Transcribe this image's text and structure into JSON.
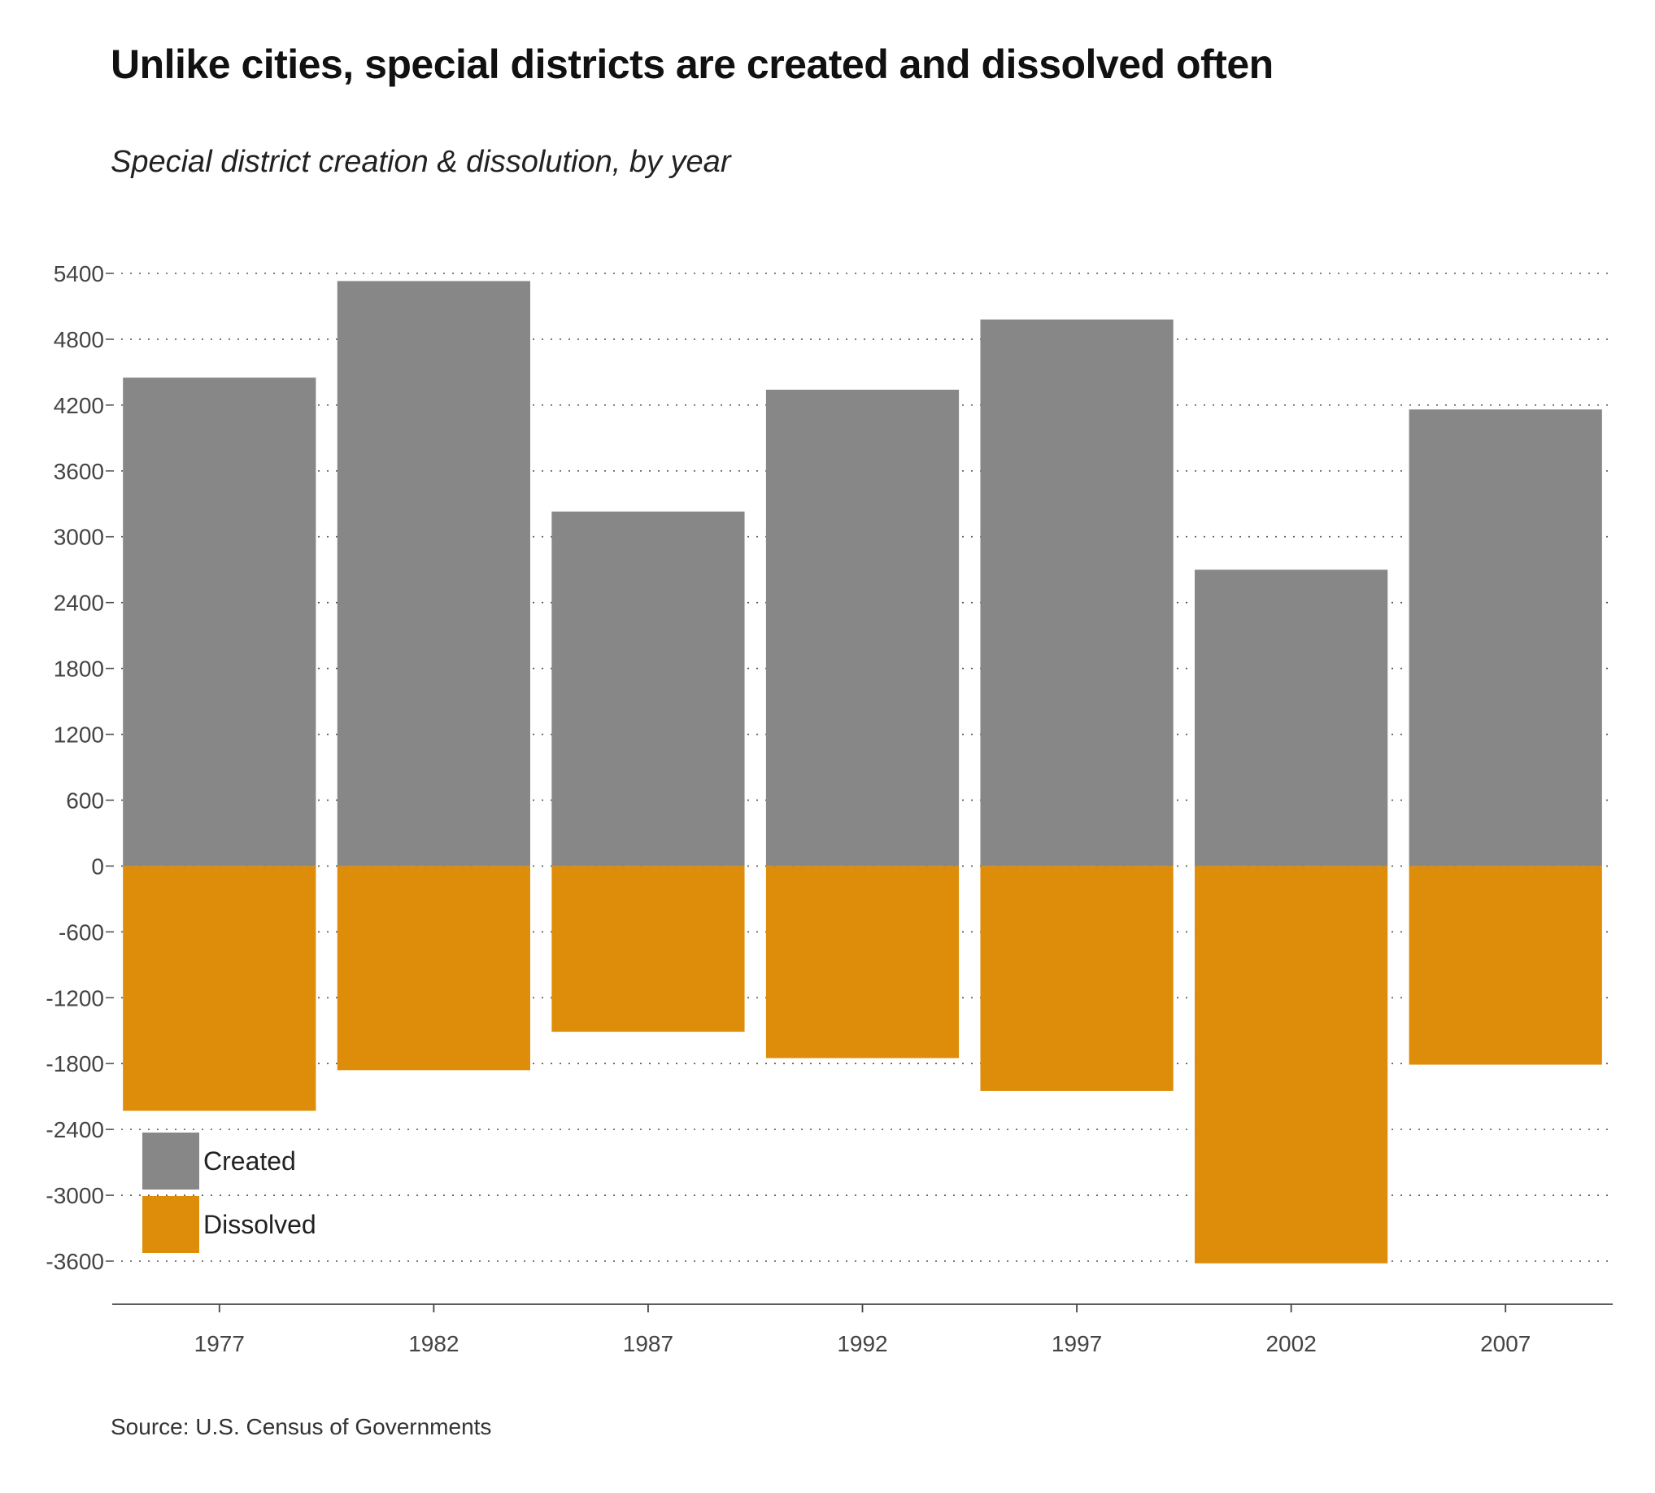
{
  "chart_data": {
    "type": "bar",
    "title": "Unlike cities, special districts are created and dissolved often",
    "subtitle": "Special district creation & dissolution, by year",
    "source": "Source: U.S. Census of Governments",
    "categories": [
      "1977",
      "1982",
      "1987",
      "1992",
      "1997",
      "2002",
      "2007"
    ],
    "series": [
      {
        "name": "Created",
        "color": "#878787",
        "values": [
          4450,
          5330,
          3230,
          4340,
          4980,
          2700,
          4160
        ]
      },
      {
        "name": "Dissolved",
        "color": "#dd8d09",
        "values": [
          -2230,
          -1860,
          -1510,
          -1750,
          -2050,
          -3620,
          -1810
        ]
      }
    ],
    "yticks": [
      "5400",
      "4800",
      "4200",
      "3600",
      "3000",
      "2400",
      "1800",
      "1200",
      "600",
      "0",
      "-600",
      "-1200",
      "-1800",
      "-2400",
      "-3000",
      "-3600"
    ],
    "ylim": [
      -3600,
      5400
    ],
    "grid": true,
    "legend": "bottom-left",
    "stacked": true
  }
}
